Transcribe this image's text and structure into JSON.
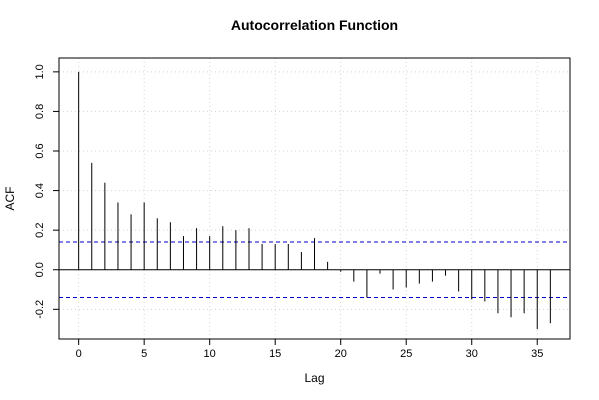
{
  "chart_data": {
    "type": "bar",
    "title": "Autocorrelation Function",
    "xlabel": "Lag",
    "ylabel": "ACF",
    "xlim": [
      -1.5,
      37.5
    ],
    "ylim": [
      -0.35,
      1.07
    ],
    "xticks": [
      0,
      5,
      10,
      15,
      20,
      25,
      30,
      35
    ],
    "yticks": [
      -0.2,
      0.0,
      0.2,
      0.4,
      0.6,
      0.8,
      1.0
    ],
    "ytick_labels": [
      "-0.2",
      "0.0",
      "0.2",
      "0.4",
      "0.6",
      "0.8",
      "1.0"
    ],
    "grid": true,
    "confidence_bound": 0.14,
    "lag": [
      0,
      1,
      2,
      3,
      4,
      5,
      6,
      7,
      8,
      9,
      10,
      11,
      12,
      13,
      14,
      15,
      16,
      17,
      18,
      19,
      20,
      21,
      22,
      23,
      24,
      25,
      26,
      27,
      28,
      29,
      30,
      31,
      32,
      33,
      34,
      35,
      36
    ],
    "values": [
      1.0,
      0.54,
      0.44,
      0.34,
      0.28,
      0.34,
      0.26,
      0.24,
      0.17,
      0.21,
      0.17,
      0.22,
      0.2,
      0.21,
      0.13,
      0.13,
      0.13,
      0.09,
      0.16,
      0.04,
      -0.01,
      -0.06,
      -0.14,
      -0.02,
      -0.1,
      -0.09,
      -0.07,
      -0.06,
      -0.03,
      -0.11,
      -0.15,
      -0.16,
      -0.22,
      -0.24,
      -0.22,
      -0.3,
      -0.27
    ],
    "colors": {
      "bars": "#000000",
      "confidence": "#0000cc",
      "grid": "#d3d3d3",
      "frame": "#000000"
    }
  }
}
